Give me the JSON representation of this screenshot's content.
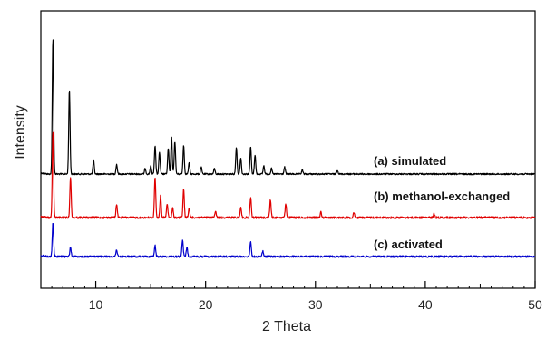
{
  "chart_data": {
    "type": "line",
    "xlabel": "2 Theta",
    "ylabel": "Intensity",
    "xlim": [
      5,
      50
    ],
    "x_ticks": [
      10,
      20,
      30,
      40,
      50
    ],
    "y_tick_labels_shown": false,
    "grid": false,
    "legend": "inline labels at right of each trace",
    "series": [
      {
        "name": "(a) simulated",
        "color": "#000000",
        "peaks": [
          {
            "x": 6.1,
            "y": 1.0
          },
          {
            "x": 7.6,
            "y": 0.62
          },
          {
            "x": 9.8,
            "y": 0.1
          },
          {
            "x": 11.9,
            "y": 0.07
          },
          {
            "x": 14.5,
            "y": 0.04
          },
          {
            "x": 15.0,
            "y": 0.06
          },
          {
            "x": 15.4,
            "y": 0.21
          },
          {
            "x": 15.8,
            "y": 0.16
          },
          {
            "x": 16.6,
            "y": 0.19
          },
          {
            "x": 16.9,
            "y": 0.27
          },
          {
            "x": 17.2,
            "y": 0.24
          },
          {
            "x": 18.0,
            "y": 0.21
          },
          {
            "x": 18.5,
            "y": 0.08
          },
          {
            "x": 19.6,
            "y": 0.05
          },
          {
            "x": 20.8,
            "y": 0.04
          },
          {
            "x": 22.8,
            "y": 0.2
          },
          {
            "x": 23.2,
            "y": 0.12
          },
          {
            "x": 24.1,
            "y": 0.2
          },
          {
            "x": 24.5,
            "y": 0.14
          },
          {
            "x": 25.3,
            "y": 0.06
          },
          {
            "x": 26.0,
            "y": 0.04
          },
          {
            "x": 27.2,
            "y": 0.05
          },
          {
            "x": 28.8,
            "y": 0.03
          },
          {
            "x": 32.0,
            "y": 0.03
          }
        ]
      },
      {
        "name": "(b) methanol-exchanged",
        "color": "#e00000",
        "peaks": [
          {
            "x": 6.1,
            "y": 0.63
          },
          {
            "x": 7.7,
            "y": 0.3
          },
          {
            "x": 11.9,
            "y": 0.1
          },
          {
            "x": 15.4,
            "y": 0.3
          },
          {
            "x": 15.9,
            "y": 0.16
          },
          {
            "x": 16.5,
            "y": 0.1
          },
          {
            "x": 17.0,
            "y": 0.07
          },
          {
            "x": 18.0,
            "y": 0.21
          },
          {
            "x": 18.5,
            "y": 0.07
          },
          {
            "x": 20.9,
            "y": 0.05
          },
          {
            "x": 23.2,
            "y": 0.08
          },
          {
            "x": 24.1,
            "y": 0.15
          },
          {
            "x": 25.9,
            "y": 0.13
          },
          {
            "x": 27.3,
            "y": 0.1
          },
          {
            "x": 30.5,
            "y": 0.04
          },
          {
            "x": 33.5,
            "y": 0.04
          },
          {
            "x": 40.8,
            "y": 0.03
          }
        ]
      },
      {
        "name": "(c) activated",
        "color": "#0000cc",
        "peaks": [
          {
            "x": 6.1,
            "y": 0.25
          },
          {
            "x": 7.7,
            "y": 0.07
          },
          {
            "x": 11.9,
            "y": 0.05
          },
          {
            "x": 15.4,
            "y": 0.08
          },
          {
            "x": 17.9,
            "y": 0.12
          },
          {
            "x": 18.3,
            "y": 0.07
          },
          {
            "x": 24.1,
            "y": 0.11
          },
          {
            "x": 25.2,
            "y": 0.04
          }
        ]
      }
    ]
  }
}
